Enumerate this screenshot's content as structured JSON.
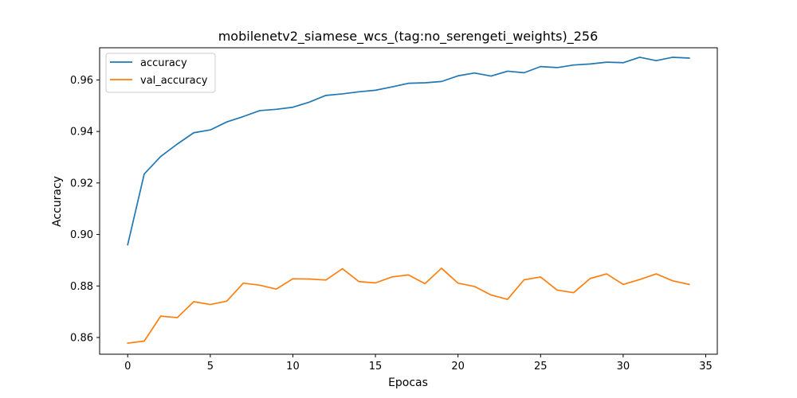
{
  "chart_data": {
    "type": "line",
    "title": "mobilenetv2_siamese_wcs_(tag:no_serengeti_weights)_256",
    "xlabel": "Epocas",
    "ylabel": "Accuracy",
    "xlim": [
      -1.7,
      35.7
    ],
    "ylim": [
      0.8535,
      0.9725
    ],
    "xticks": [
      0,
      5,
      10,
      15,
      20,
      25,
      30,
      35
    ],
    "yticks": [
      0.86,
      0.88,
      0.9,
      0.92,
      0.94,
      0.96
    ],
    "ytick_labels": [
      "0.86",
      "0.88",
      "0.90",
      "0.92",
      "0.94",
      "0.96"
    ],
    "grid": false,
    "legend_position": "upper-left",
    "x": [
      0,
      1,
      2,
      3,
      4,
      5,
      6,
      7,
      8,
      9,
      10,
      11,
      12,
      13,
      14,
      15,
      16,
      17,
      18,
      19,
      20,
      21,
      22,
      23,
      24,
      25,
      26,
      27,
      28,
      29,
      30,
      31,
      32,
      33,
      34
    ],
    "series": [
      {
        "name": "accuracy",
        "color": "#1f77b4",
        "values": [
          0.896,
          0.9235,
          0.9303,
          0.9351,
          0.9395,
          0.9406,
          0.9437,
          0.9458,
          0.9481,
          0.9486,
          0.9494,
          0.9514,
          0.954,
          0.9546,
          0.9554,
          0.956,
          0.9573,
          0.9587,
          0.9589,
          0.9594,
          0.9616,
          0.9627,
          0.9615,
          0.9634,
          0.9628,
          0.9652,
          0.9648,
          0.9658,
          0.9662,
          0.9669,
          0.9667,
          0.9688,
          0.9675,
          0.9688,
          0.9685
        ]
      },
      {
        "name": "val_accuracy",
        "color": "#ff7f0e",
        "values": [
          0.8578,
          0.8586,
          0.8683,
          0.8677,
          0.8739,
          0.8728,
          0.8741,
          0.8811,
          0.8803,
          0.8788,
          0.8828,
          0.8827,
          0.8823,
          0.8867,
          0.8817,
          0.8812,
          0.8835,
          0.8843,
          0.8809,
          0.8869,
          0.8811,
          0.8798,
          0.8765,
          0.8748,
          0.8824,
          0.8835,
          0.8784,
          0.8774,
          0.8829,
          0.8847,
          0.8806,
          0.8825,
          0.8847,
          0.882,
          0.8806
        ]
      }
    ]
  }
}
